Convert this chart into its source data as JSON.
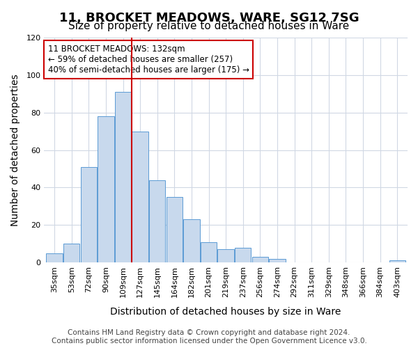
{
  "title": "11, BROCKET MEADOWS, WARE, SG12 7SG",
  "subtitle": "Size of property relative to detached houses in Ware",
  "xlabel": "Distribution of detached houses by size in Ware",
  "ylabel": "Number of detached properties",
  "bar_labels": [
    "35sqm",
    "53sqm",
    "72sqm",
    "90sqm",
    "109sqm",
    "127sqm",
    "145sqm",
    "164sqm",
    "182sqm",
    "201sqm",
    "219sqm",
    "237sqm",
    "256sqm",
    "274sqm",
    "292sqm",
    "311sqm",
    "329sqm",
    "348sqm",
    "366sqm",
    "384sqm",
    "403sqm"
  ],
  "bar_values": [
    5,
    10,
    51,
    78,
    91,
    70,
    44,
    35,
    23,
    11,
    7,
    8,
    3,
    2,
    0,
    0,
    0,
    0,
    0,
    0,
    1
  ],
  "bar_color": "#c8d9ed",
  "bar_edgecolor": "#5b9bd5",
  "vline_x": 5,
  "vline_color": "#cc0000",
  "ylim": [
    0,
    120
  ],
  "yticks": [
    0,
    20,
    40,
    60,
    80,
    100,
    120
  ],
  "annotation_line1": "11 BROCKET MEADOWS: 132sqm",
  "annotation_line2": "← 59% of detached houses are smaller (257)",
  "annotation_line3": "40% of semi-detached houses are larger (175) →",
  "annotation_box_color": "#ffffff",
  "annotation_box_edgecolor": "#cc0000",
  "footer_line1": "Contains HM Land Registry data © Crown copyright and database right 2024.",
  "footer_line2": "Contains public sector information licensed under the Open Government Licence v3.0.",
  "background_color": "#ffffff",
  "grid_color": "#d0d8e4",
  "title_fontsize": 13,
  "subtitle_fontsize": 11,
  "axis_label_fontsize": 10,
  "tick_fontsize": 8,
  "footer_fontsize": 7.5
}
